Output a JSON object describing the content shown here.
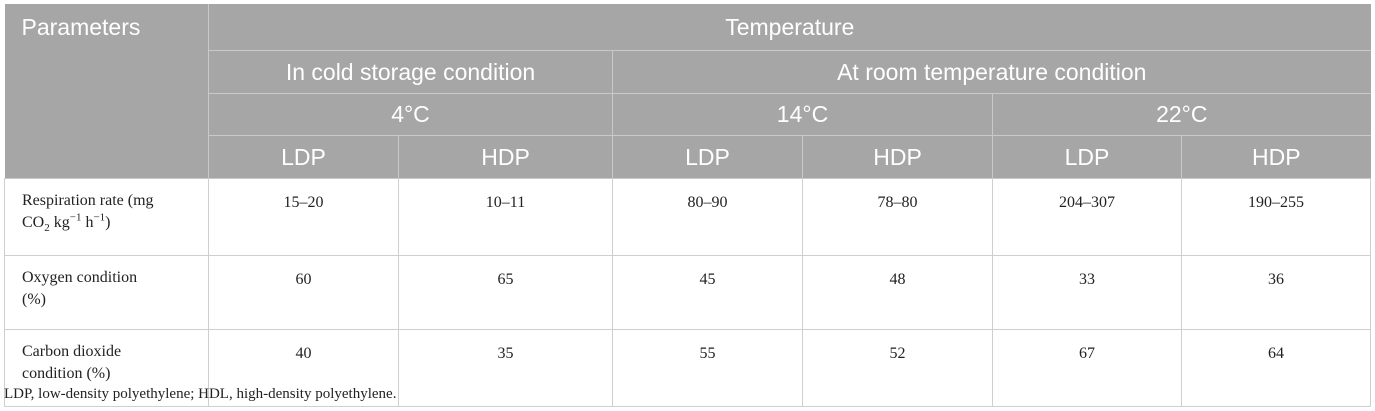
{
  "header": {
    "parameters": "Parameters",
    "temperature": "Temperature",
    "cold_storage": "In cold storage condition",
    "room_temp": "At room temperature condition",
    "temps": [
      "4°C",
      "14°C",
      "22°C"
    ],
    "packs": [
      "LDP",
      "HDP",
      "LDP",
      "HDP",
      "LDP",
      "HDP"
    ]
  },
  "rows": [
    {
      "label_a": "Respiration rate (mg",
      "label_b1": "CO",
      "label_b2": "2",
      "label_b3": " kg",
      "label_b4": "−1",
      "label_b5": " h",
      "label_b6": "−1",
      "label_b7": ")",
      "values": [
        "15–20",
        "10–11",
        "80–90",
        "78–80",
        "204–307",
        "190–255"
      ]
    },
    {
      "label_a": "Oxygen condition",
      "label_b": "(%)",
      "values": [
        "60",
        "65",
        "45",
        "48",
        "33",
        "36"
      ]
    },
    {
      "label_a": "Carbon dioxide",
      "label_b": "condition (%)",
      "values": [
        "40",
        "35",
        "55",
        "52",
        "67",
        "64"
      ]
    }
  ],
  "footnote": "LDP, low-density polyethylene; HDL, high-density polyethylene."
}
